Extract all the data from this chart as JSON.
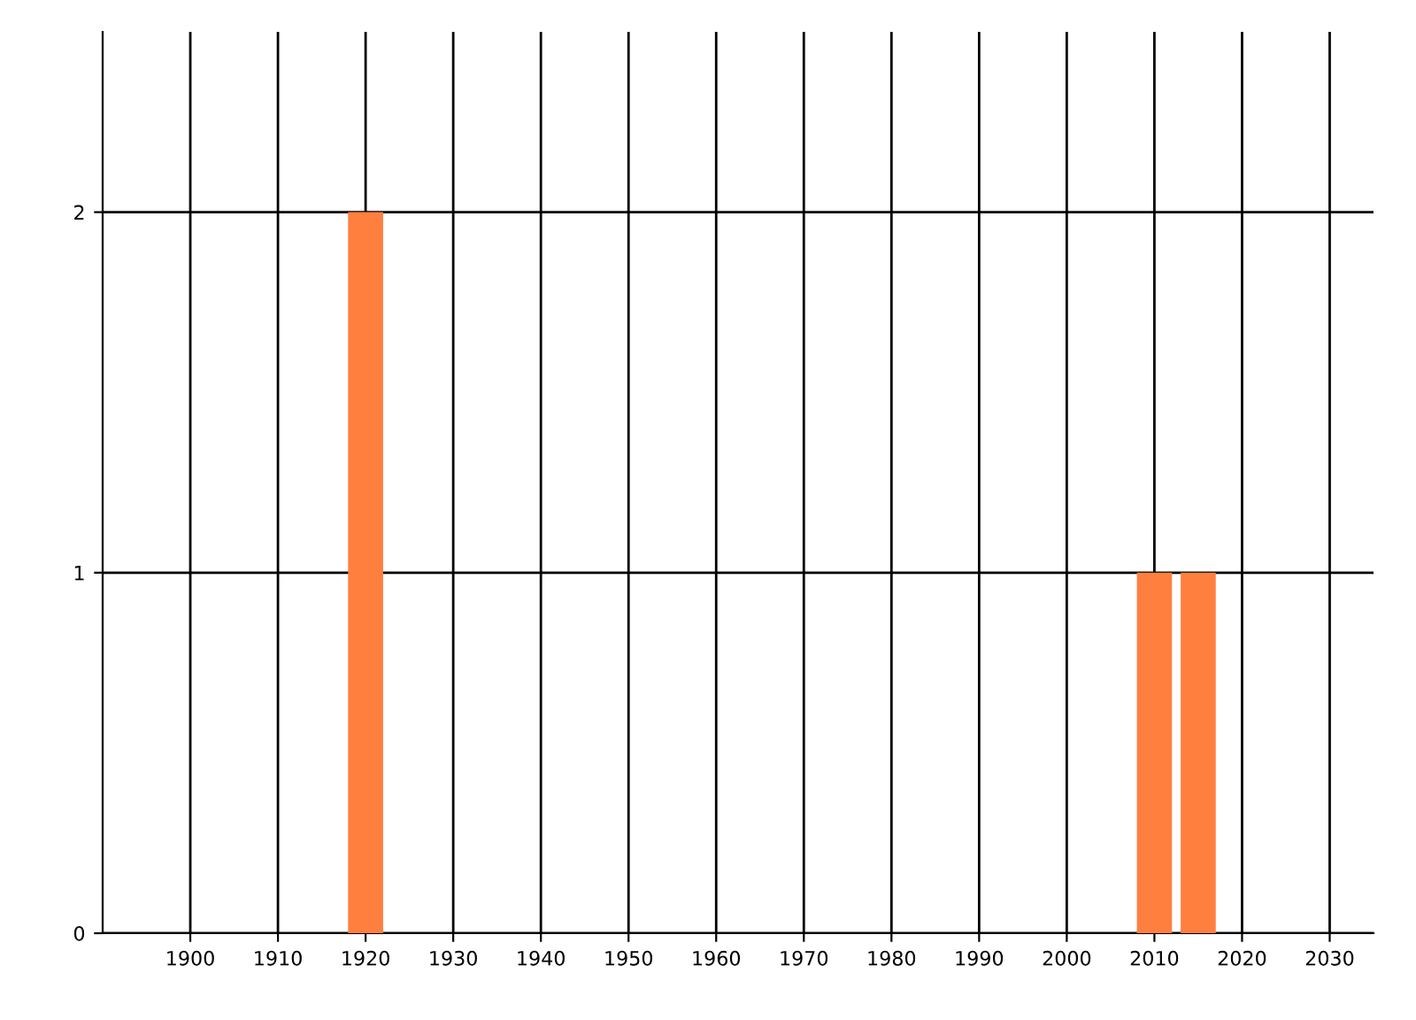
{
  "chart_data": {
    "type": "bar",
    "x": [
      1920,
      2010,
      2015
    ],
    "values": [
      2,
      1,
      1
    ],
    "color": "#ff7f3f",
    "xlim": [
      1890,
      2035
    ],
    "xticks": [
      1900,
      1910,
      1920,
      1930,
      1940,
      1950,
      1960,
      1970,
      1980,
      1990,
      2000,
      2010,
      2020,
      2030
    ],
    "ylim": [
      0,
      2.5
    ],
    "yticks": [
      0,
      1,
      2
    ],
    "grid": true
  }
}
